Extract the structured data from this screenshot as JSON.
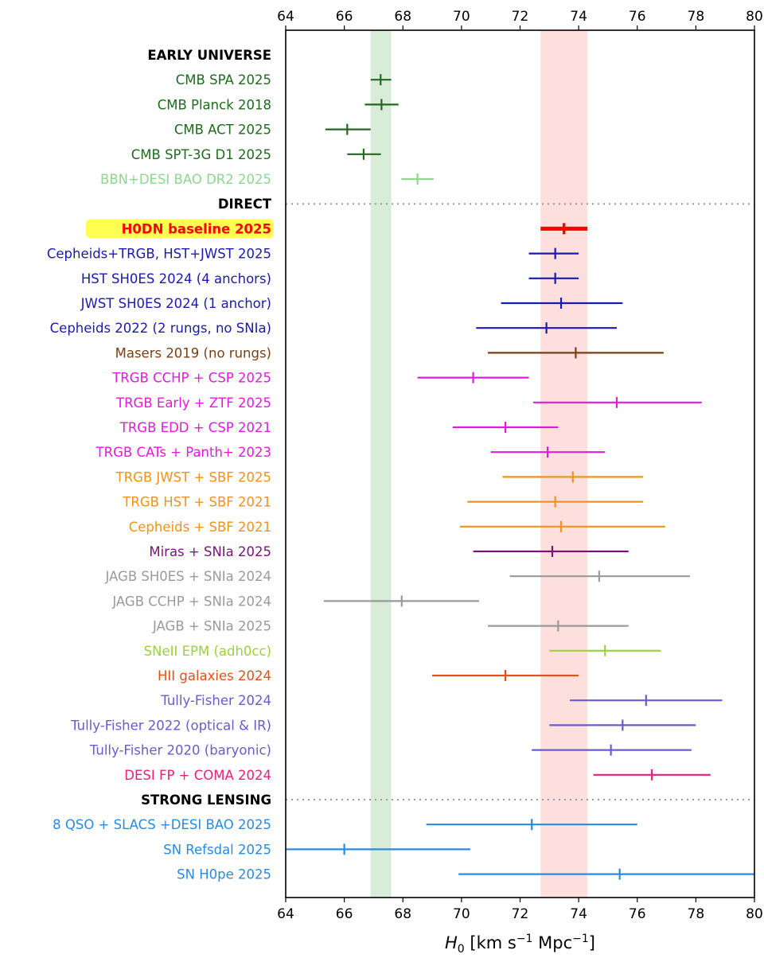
{
  "chart_data": {
    "type": "scatter",
    "xlabel": "H0 [km s−1 Mpc−1]",
    "xlabel_parts": {
      "main": "H",
      "sub": "0",
      "open": " [km s",
      "sup1": "−1",
      "mid": " Mpc",
      "sup2": "−1",
      "close": "]"
    },
    "xlim": [
      64,
      80
    ],
    "xticks": [
      "64",
      "66",
      "68",
      "70",
      "72",
      "74",
      "76",
      "78",
      "80"
    ],
    "bands": [
      {
        "name": "green-band",
        "from": 66.9,
        "to": 67.6,
        "color": "#d8ecd8"
      },
      {
        "name": "red-band",
        "from": 72.7,
        "to": 74.3,
        "color": "#fde0de"
      }
    ],
    "rows": [
      {
        "label": "EARLY UNIVERSE",
        "section": true
      },
      {
        "label": "CMB SPA 2025",
        "value": 67.24,
        "lo": 66.9,
        "hi": 67.6,
        "color": "#1e6b1e"
      },
      {
        "label": "CMB Planck 2018",
        "value": 67.27,
        "lo": 66.7,
        "hi": 67.85,
        "color": "#1e6b1e"
      },
      {
        "label": "CMB ACT 2025",
        "value": 66.1,
        "lo": 65.35,
        "hi": 66.9,
        "color": "#1e6b1e"
      },
      {
        "label": "CMB SPT-3G D1 2025",
        "value": 66.66,
        "lo": 66.1,
        "hi": 67.25,
        "color": "#1e6b1e"
      },
      {
        "label": "BBN+DESI BAO DR2 2025",
        "value": 68.5,
        "lo": 67.95,
        "hi": 69.05,
        "color": "#8fd68f"
      },
      {
        "label": "DIRECT",
        "section": true,
        "divider": true
      },
      {
        "label": "H0DN baseline 2025",
        "value": 73.5,
        "lo": 72.7,
        "hi": 74.3,
        "color": "#ff0000",
        "highlight": true
      },
      {
        "label": "Cepheids+TRGB, HST+JWST 2025",
        "value": 73.2,
        "lo": 72.3,
        "hi": 74.0,
        "color": "#1a1ab0"
      },
      {
        "label": "HST SH0ES 2024 (4 anchors)",
        "value": 73.2,
        "lo": 72.3,
        "hi": 74.0,
        "color": "#1a1ab0"
      },
      {
        "label": "JWST SH0ES 2024 (1 anchor)",
        "value": 73.4,
        "lo": 71.35,
        "hi": 75.5,
        "color": "#1a1ab0"
      },
      {
        "label": "Cepheids 2022 (2 rungs, no SNIa)",
        "value": 72.9,
        "lo": 70.5,
        "hi": 75.3,
        "color": "#1a1ab0"
      },
      {
        "label": "Masers 2019 (no rungs)",
        "value": 73.9,
        "lo": 70.9,
        "hi": 76.9,
        "color": "#7a3f12"
      },
      {
        "label": "TRGB CCHP + CSP 2025",
        "value": 70.4,
        "lo": 68.5,
        "hi": 72.3,
        "color": "#e01cdc"
      },
      {
        "label": "TRGB Early + ZTF 2025",
        "value": 75.3,
        "lo": 72.45,
        "hi": 78.2,
        "color": "#e01cdc"
      },
      {
        "label": "TRGB EDD + CSP 2021",
        "value": 71.5,
        "lo": 69.7,
        "hi": 73.3,
        "color": "#e01cdc"
      },
      {
        "label": "TRGB CATs + Panth+ 2023",
        "value": 72.94,
        "lo": 71.0,
        "hi": 74.9,
        "color": "#e01cdc"
      },
      {
        "label": "TRGB JWST + SBF 2025",
        "value": 73.8,
        "lo": 71.4,
        "hi": 76.2,
        "color": "#f0921c"
      },
      {
        "label": "TRGB HST + SBF 2021",
        "value": 73.2,
        "lo": 70.2,
        "hi": 76.2,
        "color": "#f0921c"
      },
      {
        "label": "Cepheids + SBF 2021",
        "value": 73.4,
        "lo": 69.95,
        "hi": 76.95,
        "color": "#f0921c"
      },
      {
        "label": "Miras + SNIa 2025",
        "value": 73.1,
        "lo": 70.4,
        "hi": 75.7,
        "color": "#7a127a"
      },
      {
        "label": "JAGB SH0ES + SNIa 2024",
        "value": 74.7,
        "lo": 71.65,
        "hi": 77.8,
        "color": "#9a9a9a"
      },
      {
        "label": "JAGB CCHP + SNIa 2024",
        "value": 67.96,
        "lo": 65.3,
        "hi": 70.6,
        "color": "#9a9a9a"
      },
      {
        "label": "JAGB + SNIa 2025",
        "value": 73.3,
        "lo": 70.9,
        "hi": 75.7,
        "color": "#9a9a9a"
      },
      {
        "label": "SNeII EPM (adh0cc)",
        "value": 74.9,
        "lo": 73.0,
        "hi": 76.8,
        "color": "#9ad23a"
      },
      {
        "label": "HII galaxies 2024",
        "value": 71.5,
        "lo": 69.0,
        "hi": 74.0,
        "color": "#e0501a"
      },
      {
        "label": "Tully-Fisher 2024",
        "value": 76.3,
        "lo": 73.7,
        "hi": 78.9,
        "color": "#6a5acd"
      },
      {
        "label": "Tully-Fisher 2022 (optical & IR)",
        "value": 75.5,
        "lo": 73.0,
        "hi": 78.0,
        "color": "#6a5acd"
      },
      {
        "label": "Tully-Fisher 2020 (baryonic)",
        "value": 75.1,
        "lo": 72.4,
        "hi": 77.85,
        "color": "#6a5acd"
      },
      {
        "label": "DESI FP + COMA 2024",
        "value": 76.5,
        "lo": 74.5,
        "hi": 78.5,
        "color": "#e8207c"
      },
      {
        "label": "STRONG LENSING",
        "section": true,
        "divider": true
      },
      {
        "label": "8 QSO + SLACS +DESI BAO 2025",
        "value": 72.4,
        "lo": 68.8,
        "hi": 76.0,
        "color": "#2a8ae0"
      },
      {
        "label": "SN Refsdal 2025",
        "value": 66.0,
        "lo": 64.0,
        "hi": 70.3,
        "color": "#2a8ae0"
      },
      {
        "label": "SN H0pe 2025",
        "value": 75.4,
        "lo": 69.9,
        "hi": 80.0,
        "color": "#2a8ae0"
      }
    ]
  }
}
